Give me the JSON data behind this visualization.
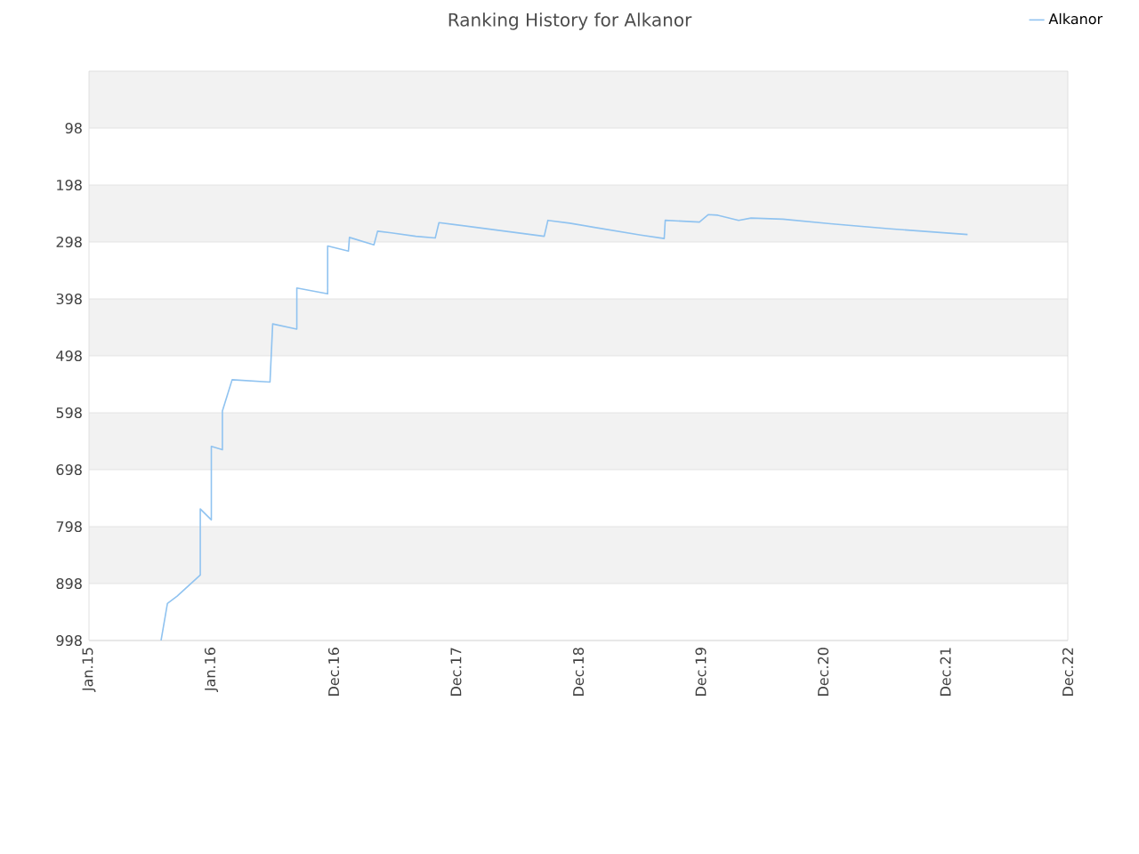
{
  "chart_data": {
    "type": "line",
    "title": "Ranking History for Alkanor",
    "xlim": [
      "2015-01-01",
      "2022-12-30"
    ],
    "xticks": [
      {
        "value": "2015-01-01",
        "label": "Jan.15"
      },
      {
        "value": "2016-01-01",
        "label": "Jan.16"
      },
      {
        "value": "2016-12-31",
        "label": "Dec.16"
      },
      {
        "value": "2017-12-31",
        "label": "Dec.17"
      },
      {
        "value": "2018-12-31",
        "label": "Dec.18"
      },
      {
        "value": "2019-12-31",
        "label": "Dec.19"
      },
      {
        "value": "2020-12-30",
        "label": "Dec.20"
      },
      {
        "value": "2021-12-30",
        "label": "Dec.21"
      },
      {
        "value": "2022-12-30",
        "label": "Dec.22"
      }
    ],
    "ylim": [
      998,
      -2
    ],
    "yticks": [
      98,
      198,
      298,
      398,
      498,
      598,
      698,
      798,
      898,
      998
    ],
    "grid": "y",
    "legend": "top right",
    "marker": "none",
    "line_style": "solid",
    "series": [
      {
        "name": "Alkanor",
        "color": "#90c3f0",
        "x": [
          "2015-08-04",
          "2015-08-23",
          "2015-09-21",
          "2015-11-29",
          "2015-11-29",
          "2016-01-01",
          "2016-01-01",
          "2016-02-03",
          "2016-02-03",
          "2016-03-03",
          "2016-06-24",
          "2016-07-02",
          "2016-09-12",
          "2016-09-12",
          "2016-12-13",
          "2016-12-13",
          "2017-02-13",
          "2017-02-16",
          "2017-04-30",
          "2017-05-11",
          "2017-06-21",
          "2017-09-02",
          "2017-10-30",
          "2017-11-10",
          "2018-02-24",
          "2018-09-20",
          "2018-10-01",
          "2018-12-05",
          "2019-02-13",
          "2019-07-05",
          "2019-09-13",
          "2019-09-16",
          "2019-12-27",
          "2020-01-22",
          "2020-02-20",
          "2020-04-22",
          "2020-05-29",
          "2020-09-01",
          "2021-01-21",
          "2021-07-19",
          "2022-03-06"
        ],
        "values": [
          998,
          933,
          920,
          883,
          767,
          786,
          657,
          663,
          595,
          540,
          544,
          442,
          451,
          379,
          389,
          305,
          314,
          290,
          303,
          279,
          282,
          288,
          291,
          264,
          272,
          288,
          260,
          265,
          272,
          286,
          292,
          260,
          263,
          250,
          251,
          260,
          256,
          258,
          266,
          275,
          285
        ]
      }
    ]
  }
}
